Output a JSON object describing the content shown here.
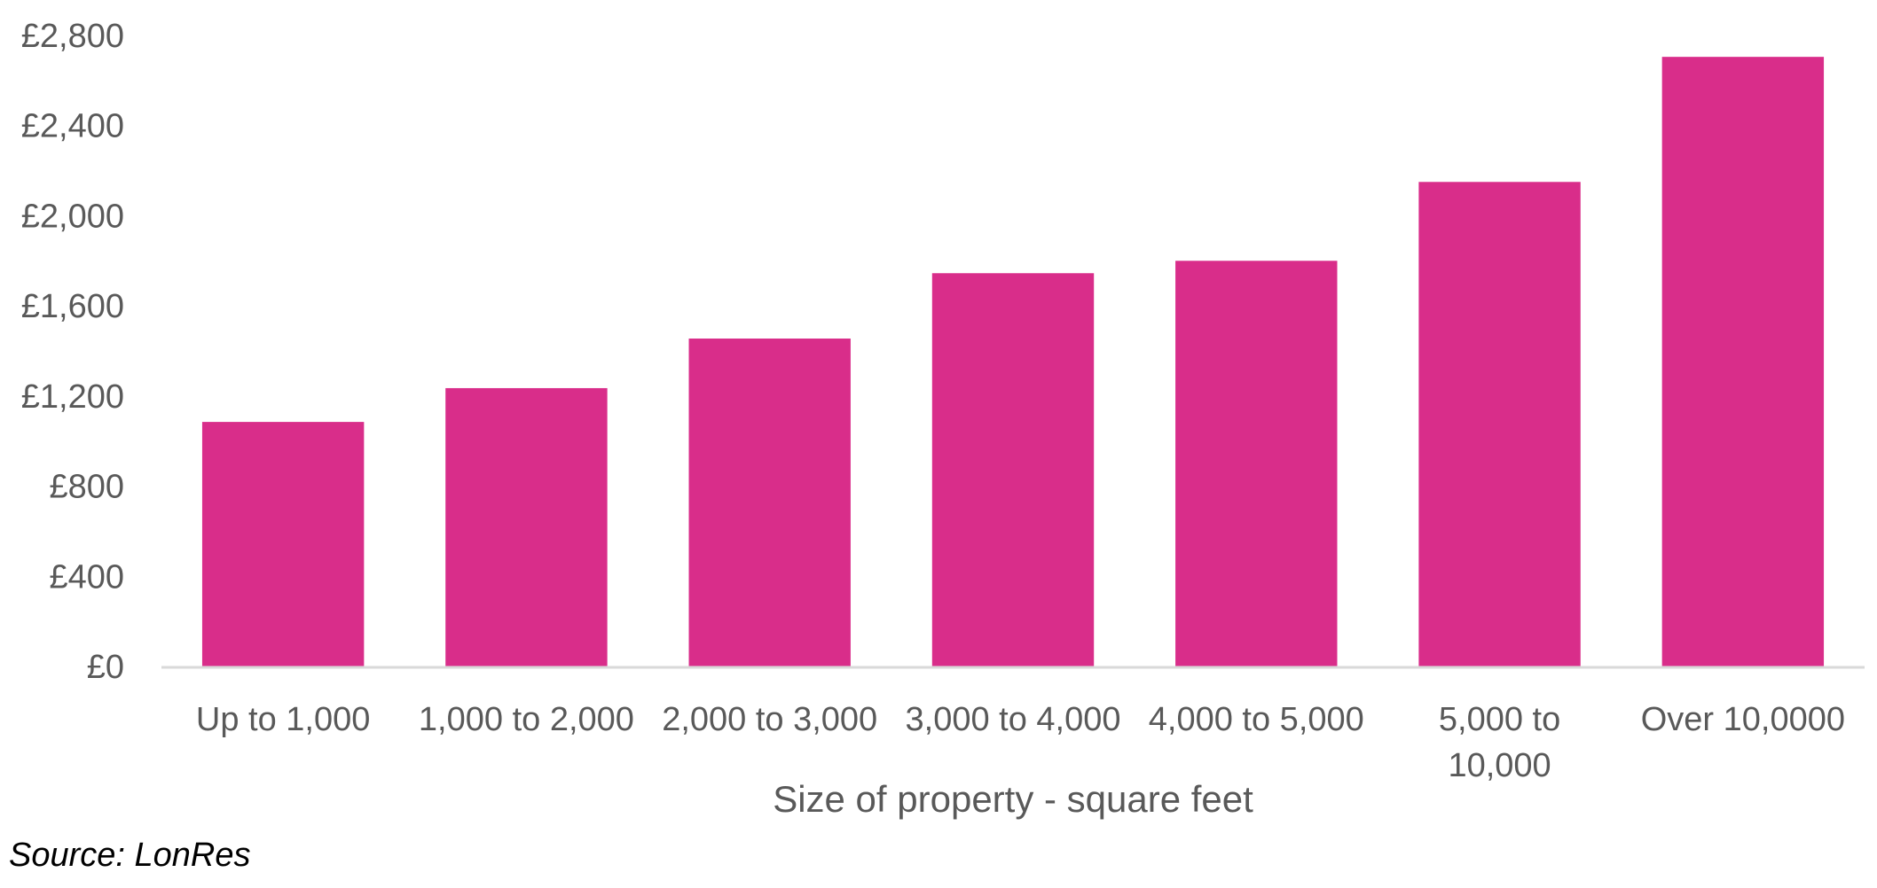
{
  "chart_data": {
    "type": "bar",
    "title": "",
    "xlabel": "Size of property - square feet",
    "ylabel": "",
    "categories": [
      "Up to 1,000",
      "1,000 to 2,000",
      "2,000 to 3,000",
      "3,000 to 4,000",
      "4,000 to 5,000",
      "5,000 to 10,000",
      "Over 10,0000"
    ],
    "values": [
      1085,
      1235,
      1455,
      1745,
      1800,
      2150,
      2705
    ],
    "ylim": [
      0,
      2800
    ],
    "yticks": [
      0,
      400,
      800,
      1200,
      1600,
      2000,
      2400,
      2800
    ],
    "ytick_labels": [
      "£0",
      "£400",
      "£800",
      "£1,200",
      "£1,600",
      "£2,000",
      "£2,400",
      "£2,800"
    ],
    "grid": false,
    "legend": "none",
    "bar_color": "#D92D8A",
    "axis_color": "#D9D9D9",
    "text_color": "#595959"
  },
  "source_note": "Source: LonRes"
}
